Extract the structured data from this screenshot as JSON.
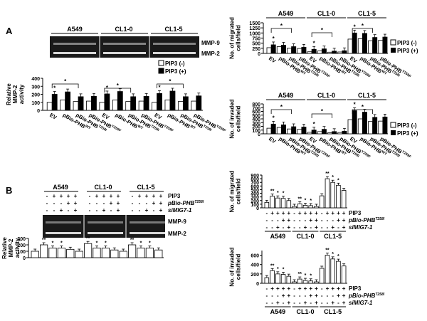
{
  "panel_a": {
    "letter": "A",
    "gel": {
      "lines": [
        "A549",
        "CL1-0",
        "CL1-5"
      ],
      "bands": [
        "MMP-9",
        "MMP-2"
      ]
    },
    "legend": {
      "neg": "PIP3 (-)",
      "pos": "PIP3 (+)"
    },
    "chart_ylabel": [
      "Relative",
      "MMP-2",
      "activity"
    ],
    "chart_yticks": [
      "0",
      "100",
      "200",
      "300",
      "400"
    ],
    "chart_xlabels": [
      "EV",
      "pBio-PHB",
      "pBio-PHB",
      "pBio-PHB"
    ],
    "chart_xsups": [
      "",
      "WT",
      "T258I",
      "Y259F"
    ],
    "migrated_ylabel": [
      "No. of migrated",
      "cells/field"
    ],
    "migrated_yticks": [
      "0",
      "250",
      "500",
      "750",
      "1000",
      "1250",
      "1500"
    ],
    "invaded_ylabel": [
      "No. of invaded",
      "cells/field"
    ],
    "invaded_yticks": [
      "0",
      "100",
      "200",
      "300",
      "400",
      "500",
      "600",
      "700",
      "800"
    ]
  },
  "panel_b": {
    "letter": "B",
    "gel": {
      "lines": [
        "A549",
        "CL1-0",
        "CL1-5"
      ],
      "bands": [
        "MMP-9",
        "MMP-2"
      ]
    },
    "conditions": {
      "r1": "PIP3",
      "r2": "pBio-PHB",
      "r2sup": "T258I",
      "r3": "siMIG7-1"
    },
    "signs": {
      "r1": [
        "-",
        "+",
        "+",
        "+",
        "+"
      ],
      "r2": [
        "-",
        "-",
        "-",
        "+",
        "+"
      ],
      "r3": [
        "-",
        "-",
        "+",
        "-",
        "+"
      ]
    },
    "chart_ylabel": [
      "Relative",
      "MMP-2",
      "activity"
    ],
    "chart_yticks": [
      "0",
      "100",
      "200",
      "300"
    ],
    "migrated_ylabel": [
      "No. of migrated",
      "cells/field"
    ],
    "migrated_yticks": [
      "0",
      "100",
      "200",
      "300",
      "400",
      "500",
      "600",
      "700",
      "800",
      "900"
    ],
    "invaded_ylabel": [
      "No. of invaded",
      "cells/field"
    ],
    "invaded_yticks": [
      "0",
      "200",
      "400",
      "600"
    ]
  },
  "sig": {
    "double": "**",
    "single": "*"
  },
  "colors": {
    "pip3_neg": "#ffffff",
    "pip3_pos": "#000000",
    "gel_bg": "#1a1a1a",
    "band": "#d8d8d8"
  },
  "chart_data": [
    {
      "type": "bar",
      "title": "",
      "ylabel": "Relative MMP-2 activity",
      "ylim": [
        0,
        400
      ],
      "categories": [
        "A549 EV",
        "A549 pBio-PHB WT",
        "A549 pBio-PHB T258I",
        "A549 pBio-PHB Y259F",
        "CL1-0 EV",
        "CL1-0 pBio-PHB WT",
        "CL1-0 pBio-PHB T258I",
        "CL1-0 pBio-PHB Y259F",
        "CL1-5 EV",
        "CL1-5 pBio-PHB WT",
        "CL1-5 pBio-PHB T258I",
        "CL1-5 pBio-PHB Y259F"
      ],
      "series": [
        {
          "name": "PIP3 (-)",
          "values": [
            100,
            130,
            110,
            115,
            100,
            130,
            110,
            115,
            100,
            130,
            110,
            115
          ]
        },
        {
          "name": "PIP3 (+)",
          "values": [
            200,
            230,
            170,
            175,
            205,
            235,
            170,
            175,
            210,
            240,
            170,
            180
          ]
        }
      ]
    },
    {
      "type": "bar",
      "ylabel": "No. of migrated cells/field",
      "ylim": [
        0,
        1500
      ],
      "categories": [
        "A549 EV",
        "A549 pBio-PHB WT",
        "A549 pBio-PHB T258I",
        "A549 pBio-PHB Y259F",
        "CL1-0 EV",
        "CL1-0 pBio-PHB WT",
        "CL1-0 pBio-PHB T258I",
        "CL1-0 pBio-PHB Y259F",
        "CL1-5 EV",
        "CL1-5 pBio-PHB WT",
        "CL1-5 pBio-PHB T258I",
        "CL1-5 pBio-PHB Y259F"
      ],
      "series": [
        {
          "name": "PIP3 (-)",
          "values": [
            280,
            330,
            250,
            240,
            80,
            120,
            60,
            70,
            700,
            720,
            620,
            640
          ]
        },
        {
          "name": "PIP3 (+)",
          "values": [
            420,
            400,
            330,
            300,
            200,
            220,
            110,
            130,
            1000,
            980,
            780,
            800
          ]
        }
      ]
    },
    {
      "type": "bar",
      "ylabel": "No. of invaded cells/field",
      "ylim": [
        0,
        800
      ],
      "categories": [
        "A549 EV",
        "A549 pBio-PHB WT",
        "A549 pBio-PHB T258I",
        "A549 pBio-PHB Y259F",
        "CL1-0 EV",
        "CL1-0 pBio-PHB WT",
        "CL1-0 pBio-PHB T258I",
        "CL1-0 pBio-PHB Y259F",
        "CL1-5 EV",
        "CL1-5 pBio-PHB WT",
        "CL1-5 pBio-PHB T258I",
        "CL1-5 pBio-PHB Y259F"
      ],
      "series": [
        {
          "name": "PIP3 (-)",
          "values": [
            150,
            170,
            130,
            120,
            40,
            60,
            30,
            35,
            380,
            400,
            330,
            340
          ]
        },
        {
          "name": "PIP3 (+)",
          "values": [
            260,
            240,
            190,
            180,
            100,
            120,
            60,
            70,
            620,
            580,
            440,
            450
          ]
        }
      ]
    },
    {
      "type": "bar",
      "ylabel": "Relative MMP-2 activity",
      "ylim": [
        0,
        300
      ],
      "categories": [
        "A549 1",
        "A549 2",
        "A549 3",
        "A549 4",
        "A549 5",
        "CL1-0 1",
        "CL1-0 2",
        "CL1-0 3",
        "CL1-0 4",
        "CL1-0 5",
        "CL1-5 1",
        "CL1-5 2",
        "CL1-5 3",
        "CL1-5 4",
        "CL1-5 5"
      ],
      "values": [
        100,
        200,
        150,
        150,
        130,
        100,
        220,
        150,
        150,
        120,
        100,
        200,
        150,
        150,
        120
      ]
    },
    {
      "type": "bar",
      "ylabel": "No. of migrated cells/field",
      "ylim": [
        0,
        900
      ],
      "categories": [
        "A549 1",
        "A549 2",
        "A549 3",
        "A549 4",
        "A549 5",
        "CL1-0 1",
        "CL1-0 2",
        "CL1-0 3",
        "CL1-0 4",
        "CL1-0 5",
        "CL1-5 1",
        "CL1-5 2",
        "CL1-5 3",
        "CL1-5 4",
        "CL1-5 5"
      ],
      "values": [
        150,
        320,
        270,
        260,
        200,
        40,
        110,
        70,
        60,
        40,
        330,
        800,
        700,
        620,
        480
      ]
    },
    {
      "type": "bar",
      "ylabel": "No. of invaded cells/field",
      "ylim": [
        0,
        700
      ],
      "categories": [
        "A549 1",
        "A549 2",
        "A549 3",
        "A549 4",
        "A549 5",
        "CL1-0 1",
        "CL1-0 2",
        "CL1-0 3",
        "CL1-0 4",
        "CL1-0 5",
        "CL1-5 1",
        "CL1-5 2",
        "CL1-5 3",
        "CL1-5 4",
        "CL1-5 5"
      ],
      "values": [
        120,
        270,
        200,
        190,
        150,
        30,
        90,
        60,
        50,
        30,
        320,
        600,
        520,
        470,
        370
      ]
    }
  ]
}
